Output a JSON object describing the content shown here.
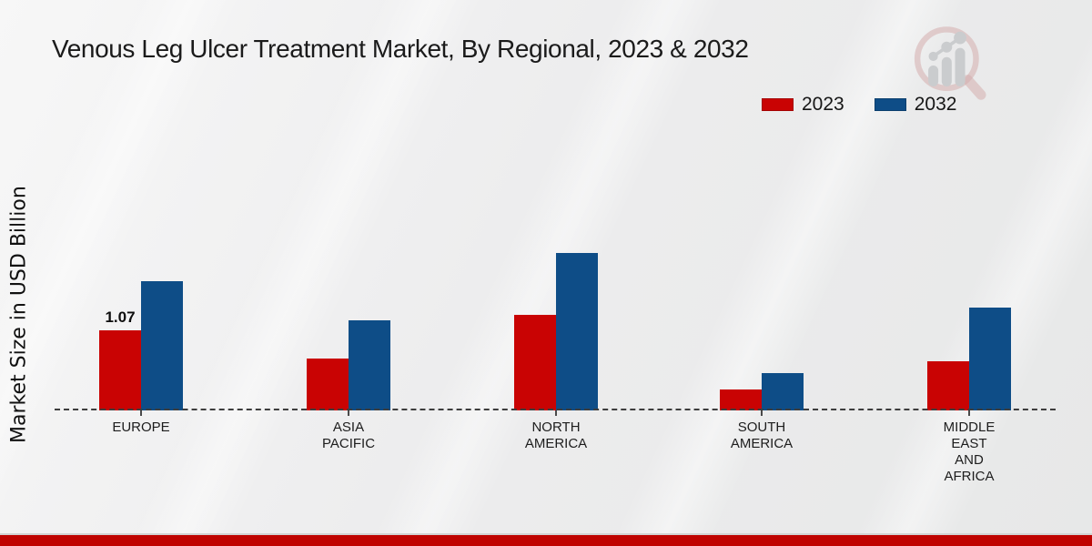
{
  "page": {
    "title": "Venous Leg Ulcer Treatment Market, By Regional, 2023 & 2032"
  },
  "legend": {
    "items": [
      {
        "label": "2023",
        "color": "#c90303"
      },
      {
        "label": "2032",
        "color": "#0e4d87"
      }
    ]
  },
  "watermark": {
    "icon": "magnifier-bar-chart-logo"
  },
  "chart_data": {
    "type": "bar",
    "title": "Venous Leg Ulcer Treatment Market, By Regional, 2023 & 2032",
    "xlabel": "",
    "ylabel": "Market Size in USD Billion",
    "categories": [
      "EUROPE",
      "ASIA\nPACIFIC",
      "NORTH\nAMERICA",
      "SOUTH\nAMERICA",
      "MIDDLE\nEAST\nAND\nAFRICA"
    ],
    "series": [
      {
        "name": "2023",
        "color": "#c90303",
        "values": [
          1.07,
          0.69,
          1.28,
          0.28,
          0.66
        ]
      },
      {
        "name": "2032",
        "color": "#0e4d87",
        "values": [
          1.73,
          1.2,
          2.1,
          0.5,
          1.38
        ]
      }
    ],
    "annotations": [
      {
        "category_index": 0,
        "series_index": 0,
        "text": "1.07"
      }
    ],
    "ylim": [
      0,
      2.5
    ],
    "grid": false,
    "axis_line": "dashed",
    "legend_position": "top-right",
    "footer_color": "#bf0300"
  }
}
